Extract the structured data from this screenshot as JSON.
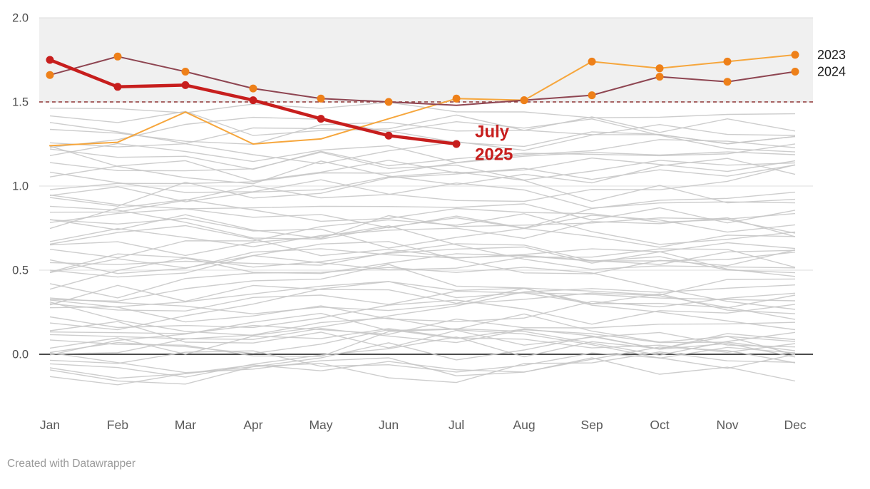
{
  "chart_data": {
    "type": "line",
    "title": "",
    "x": {
      "categories": [
        "Jan",
        "Feb",
        "Mar",
        "Apr",
        "May",
        "Jun",
        "Jul",
        "Aug",
        "Sep",
        "Oct",
        "Nov",
        "Dec"
      ]
    },
    "y_axis": {
      "range": [
        -0.3,
        2.0
      ],
      "ticks": [
        {
          "label": "2.0",
          "value": 2.0,
          "zero": false
        },
        {
          "label": "1.5",
          "value": 1.5,
          "zero": false
        },
        {
          "label": "1.0",
          "value": 1.0,
          "zero": false
        },
        {
          "label": "0.5",
          "value": 0.5,
          "zero": false
        },
        {
          "label": "0.0",
          "value": 0.0,
          "zero": true
        }
      ],
      "tick_color": "#4c4c4c",
      "month_color": "#5a5a5a",
      "year_label_color": "#1a1a1a",
      "gridline_color": "#dcdcdc",
      "zero_line_color": "#111111"
    },
    "band": {
      "from": 1.5,
      "to": 2.0,
      "color": "#f0f0f0"
    },
    "threshold": {
      "value": 1.5,
      "color": "#8e3333",
      "dash": "5 4",
      "width": 1.6
    },
    "series": [
      {
        "id": "2023",
        "name": "2023",
        "color": "#f6a63c",
        "width": 2,
        "dot_color": "#ee8019",
        "dot_radius": 5.5,
        "right_label": true,
        "values": [
          1.24,
          1.26,
          1.44,
          1.25,
          1.28,
          1.4,
          1.52,
          1.51,
          1.74,
          1.7,
          1.74,
          1.78
        ],
        "dot_months": [
          6,
          7,
          8,
          9,
          10,
          11
        ]
      },
      {
        "id": "2024",
        "name": "2024",
        "color": "#8e4551",
        "width": 2,
        "dot_color": "#ee8019",
        "dot_radius": 5.5,
        "right_label": true,
        "values": [
          1.66,
          1.77,
          1.68,
          1.58,
          1.52,
          1.5,
          1.48,
          1.51,
          1.54,
          1.65,
          1.62,
          1.68
        ],
        "dot_months": [
          0,
          1,
          2,
          3,
          4,
          5,
          7,
          8,
          9,
          10,
          11
        ]
      },
      {
        "id": "2025",
        "name": "July 2025",
        "color": "#c71e1d",
        "width": 4.5,
        "dot_color": "#c71e1d",
        "dot_radius": 5.5,
        "right_label": false,
        "values": [
          1.75,
          1.59,
          1.6,
          1.51,
          1.4,
          1.3,
          1.25
        ],
        "dot_months": [
          0,
          1,
          2,
          3,
          4,
          5,
          6
        ]
      }
    ],
    "annotation": {
      "lines": [
        "July",
        "2025"
      ],
      "month_index": 6,
      "dx": 26,
      "y_value": 1.29,
      "line_gap": 32,
      "color": "#c71e1d",
      "font_size": 24
    },
    "history_lines": {
      "count": 56,
      "seed": 42,
      "color": "#c8c8c8",
      "width": 1.4,
      "opacity": 0.9,
      "base_min": -0.06,
      "base_max": 1.4,
      "clamp_min": -0.26,
      "clamp_max": 1.55
    },
    "grid": true,
    "legend_position": "right-inline"
  },
  "footer": {
    "credit": "Created with Datawrapper"
  }
}
